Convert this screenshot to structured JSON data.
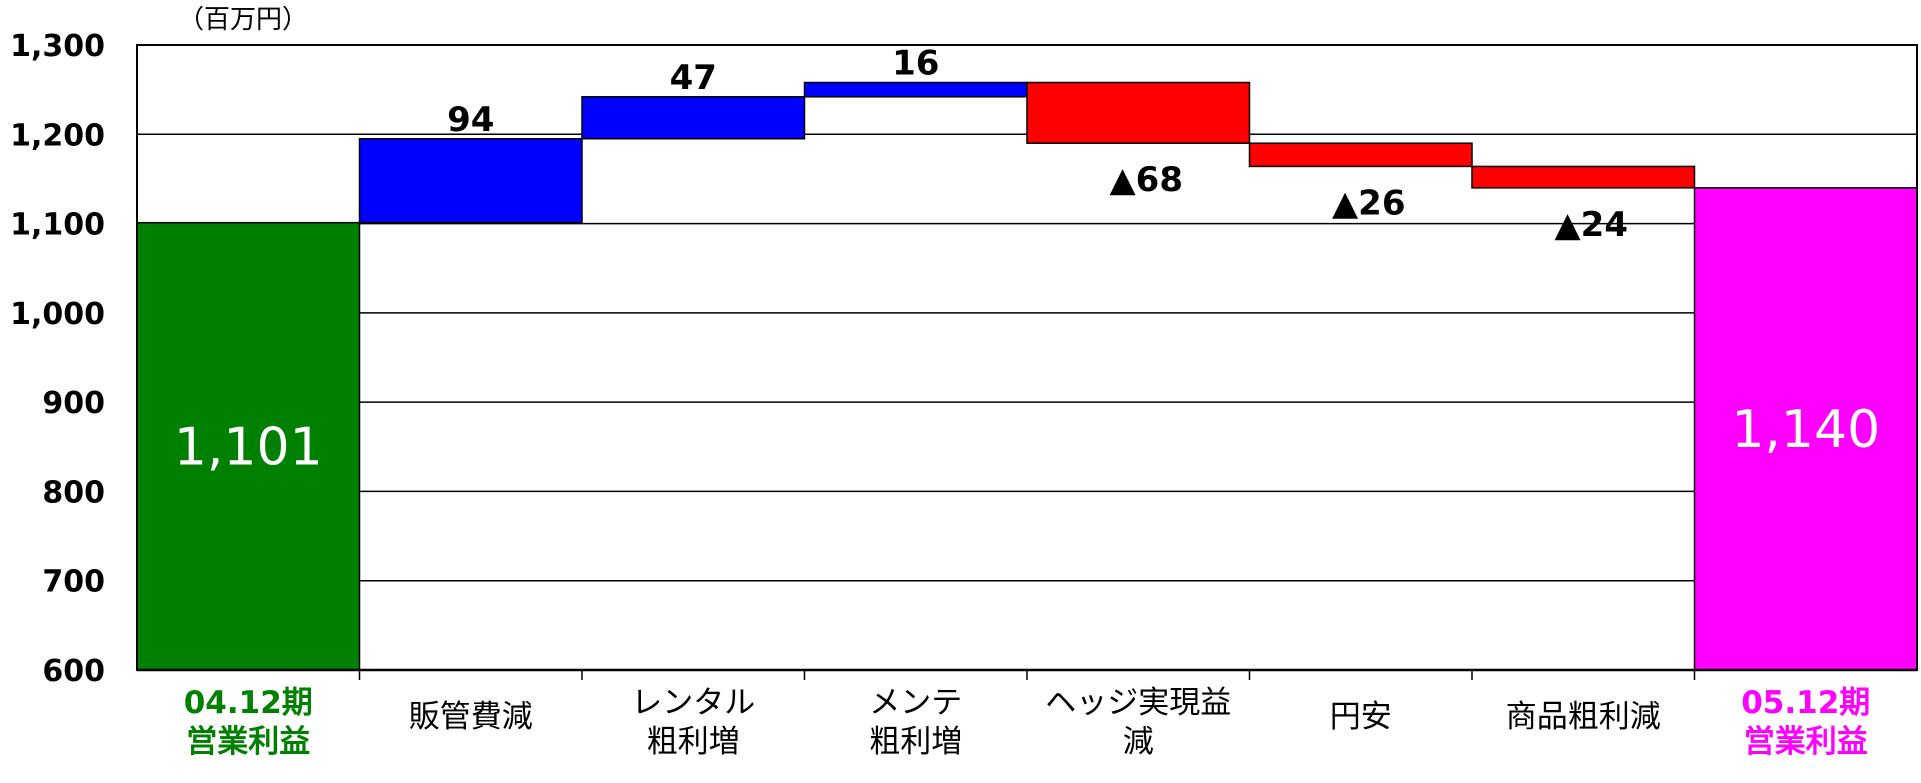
{
  "chart_data": {
    "type": "bar",
    "subtype": "waterfall",
    "unit": "（百万円）",
    "ylim": [
      600,
      1300
    ],
    "yticks": [
      "600",
      "700",
      "800",
      "900",
      "1,000",
      "1,100",
      "1,200",
      "1,300"
    ],
    "grid": true,
    "categories": [
      {
        "lines": [
          "04.12期",
          "営業利益"
        ],
        "color": "#008000",
        "bold": true
      },
      {
        "lines": [
          "販管費減"
        ]
      },
      {
        "lines": [
          "レンタル",
          "粗利増"
        ]
      },
      {
        "lines": [
          "メンテ",
          "粗利増"
        ]
      },
      {
        "lines": [
          "ヘッジ実現益",
          "減"
        ]
      },
      {
        "lines": [
          "円安"
        ]
      },
      {
        "lines": [
          "商品粗利減"
        ]
      },
      {
        "lines": [
          "05.12期",
          "営業利益"
        ],
        "color": "#ff00ff",
        "bold": true
      }
    ],
    "bars": [
      {
        "kind": "total",
        "start": 600,
        "end": 1101,
        "label": "1,101",
        "color": "#008000"
      },
      {
        "kind": "increase",
        "start": 1101,
        "end": 1195,
        "label": "94",
        "color": "#0000ff"
      },
      {
        "kind": "increase",
        "start": 1195,
        "end": 1242,
        "label": "47",
        "color": "#0000ff"
      },
      {
        "kind": "increase",
        "start": 1242,
        "end": 1258,
        "label": "16",
        "color": "#0000ff"
      },
      {
        "kind": "decrease",
        "start": 1258,
        "end": 1190,
        "label": "▲68",
        "color": "#ff0000"
      },
      {
        "kind": "decrease",
        "start": 1190,
        "end": 1164,
        "label": "▲26",
        "color": "#ff0000"
      },
      {
        "kind": "decrease",
        "start": 1164,
        "end": 1140,
        "label": "▲24",
        "color": "#ff0000"
      },
      {
        "kind": "total",
        "start": 600,
        "end": 1140,
        "label": "1,140",
        "color": "#ff00ff"
      }
    ]
  }
}
